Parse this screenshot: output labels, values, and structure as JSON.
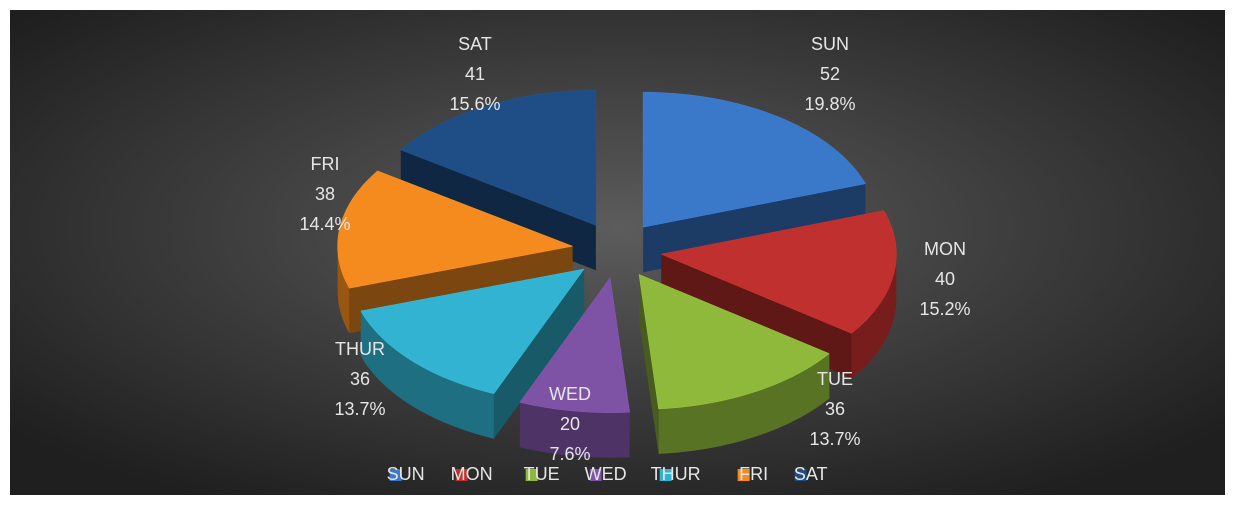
{
  "chart_data": {
    "type": "pie3d",
    "categories": [
      "SUN",
      "MON",
      "TUE",
      "WED",
      "THUR",
      "FRI",
      "SAT"
    ],
    "values": [
      52,
      40,
      36,
      20,
      36,
      38,
      41
    ],
    "percent_labels": [
      "19.8%",
      "15.2%",
      "13.7%",
      "7.6%",
      "13.7%",
      "14.4%",
      "15.6%"
    ],
    "colors": [
      "#3a78c9",
      "#c0302e",
      "#8fb93a",
      "#7e53a6",
      "#31b3d1",
      "#f58b1f",
      "#1f4e86"
    ],
    "legend": "bottom"
  }
}
